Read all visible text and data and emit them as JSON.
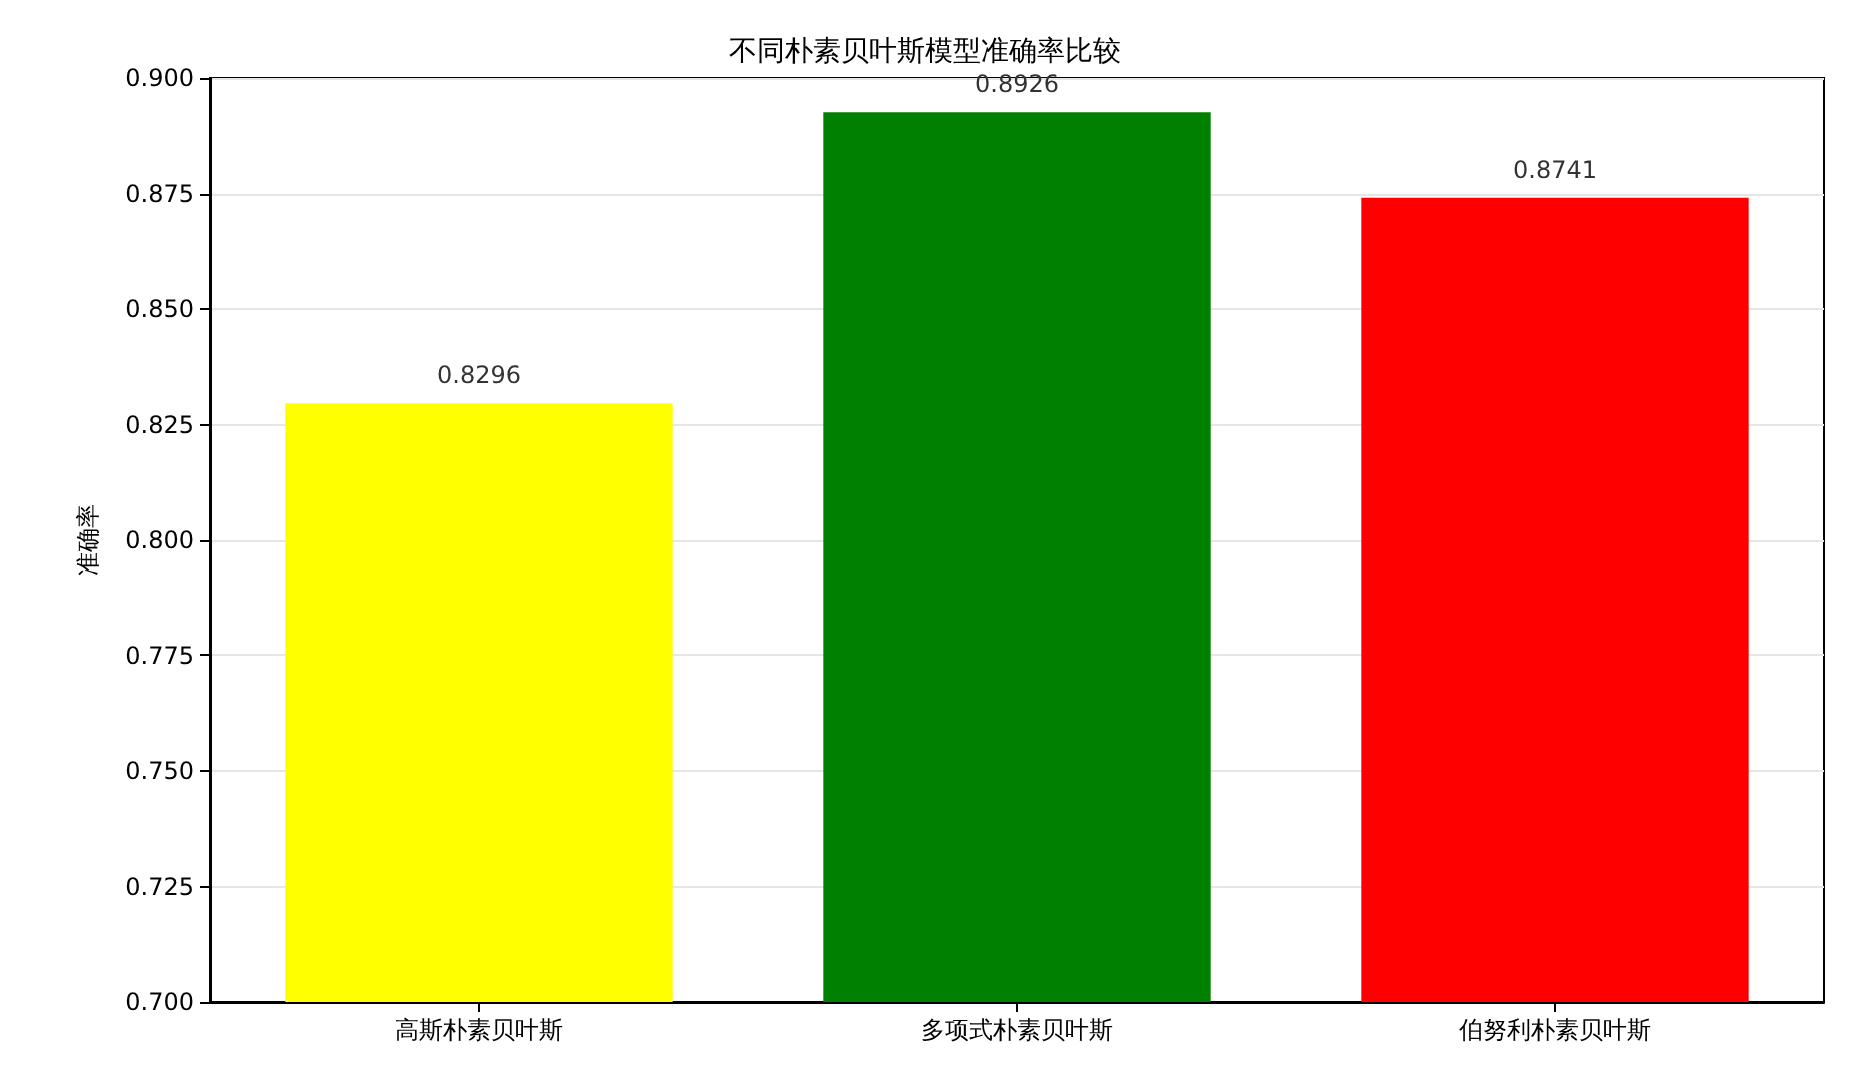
{
  "chart_data": {
    "type": "bar",
    "title": "不同朴素贝叶斯模型准确率比较",
    "ylabel": "准确率",
    "categories": [
      "高斯朴素贝叶斯",
      "多项式朴素贝叶斯",
      "伯努利朴素贝叶斯"
    ],
    "values": [
      0.8296,
      0.8926,
      0.8741
    ],
    "colors": [
      "#ffff00",
      "#008000",
      "#ff0000"
    ],
    "ylim": [
      0.7,
      0.9
    ],
    "yticks": [
      {
        "value": 0.7,
        "label": "0.700"
      },
      {
        "value": 0.725,
        "label": "0.725"
      },
      {
        "value": 0.75,
        "label": "0.750"
      },
      {
        "value": 0.775,
        "label": "0.775"
      },
      {
        "value": 0.8,
        "label": "0.800"
      },
      {
        "value": 0.825,
        "label": "0.825"
      },
      {
        "value": 0.85,
        "label": "0.850"
      },
      {
        "value": 0.875,
        "label": "0.875"
      },
      {
        "value": 0.9,
        "label": "0.900"
      }
    ],
    "grid": "y",
    "data_labels": true
  }
}
